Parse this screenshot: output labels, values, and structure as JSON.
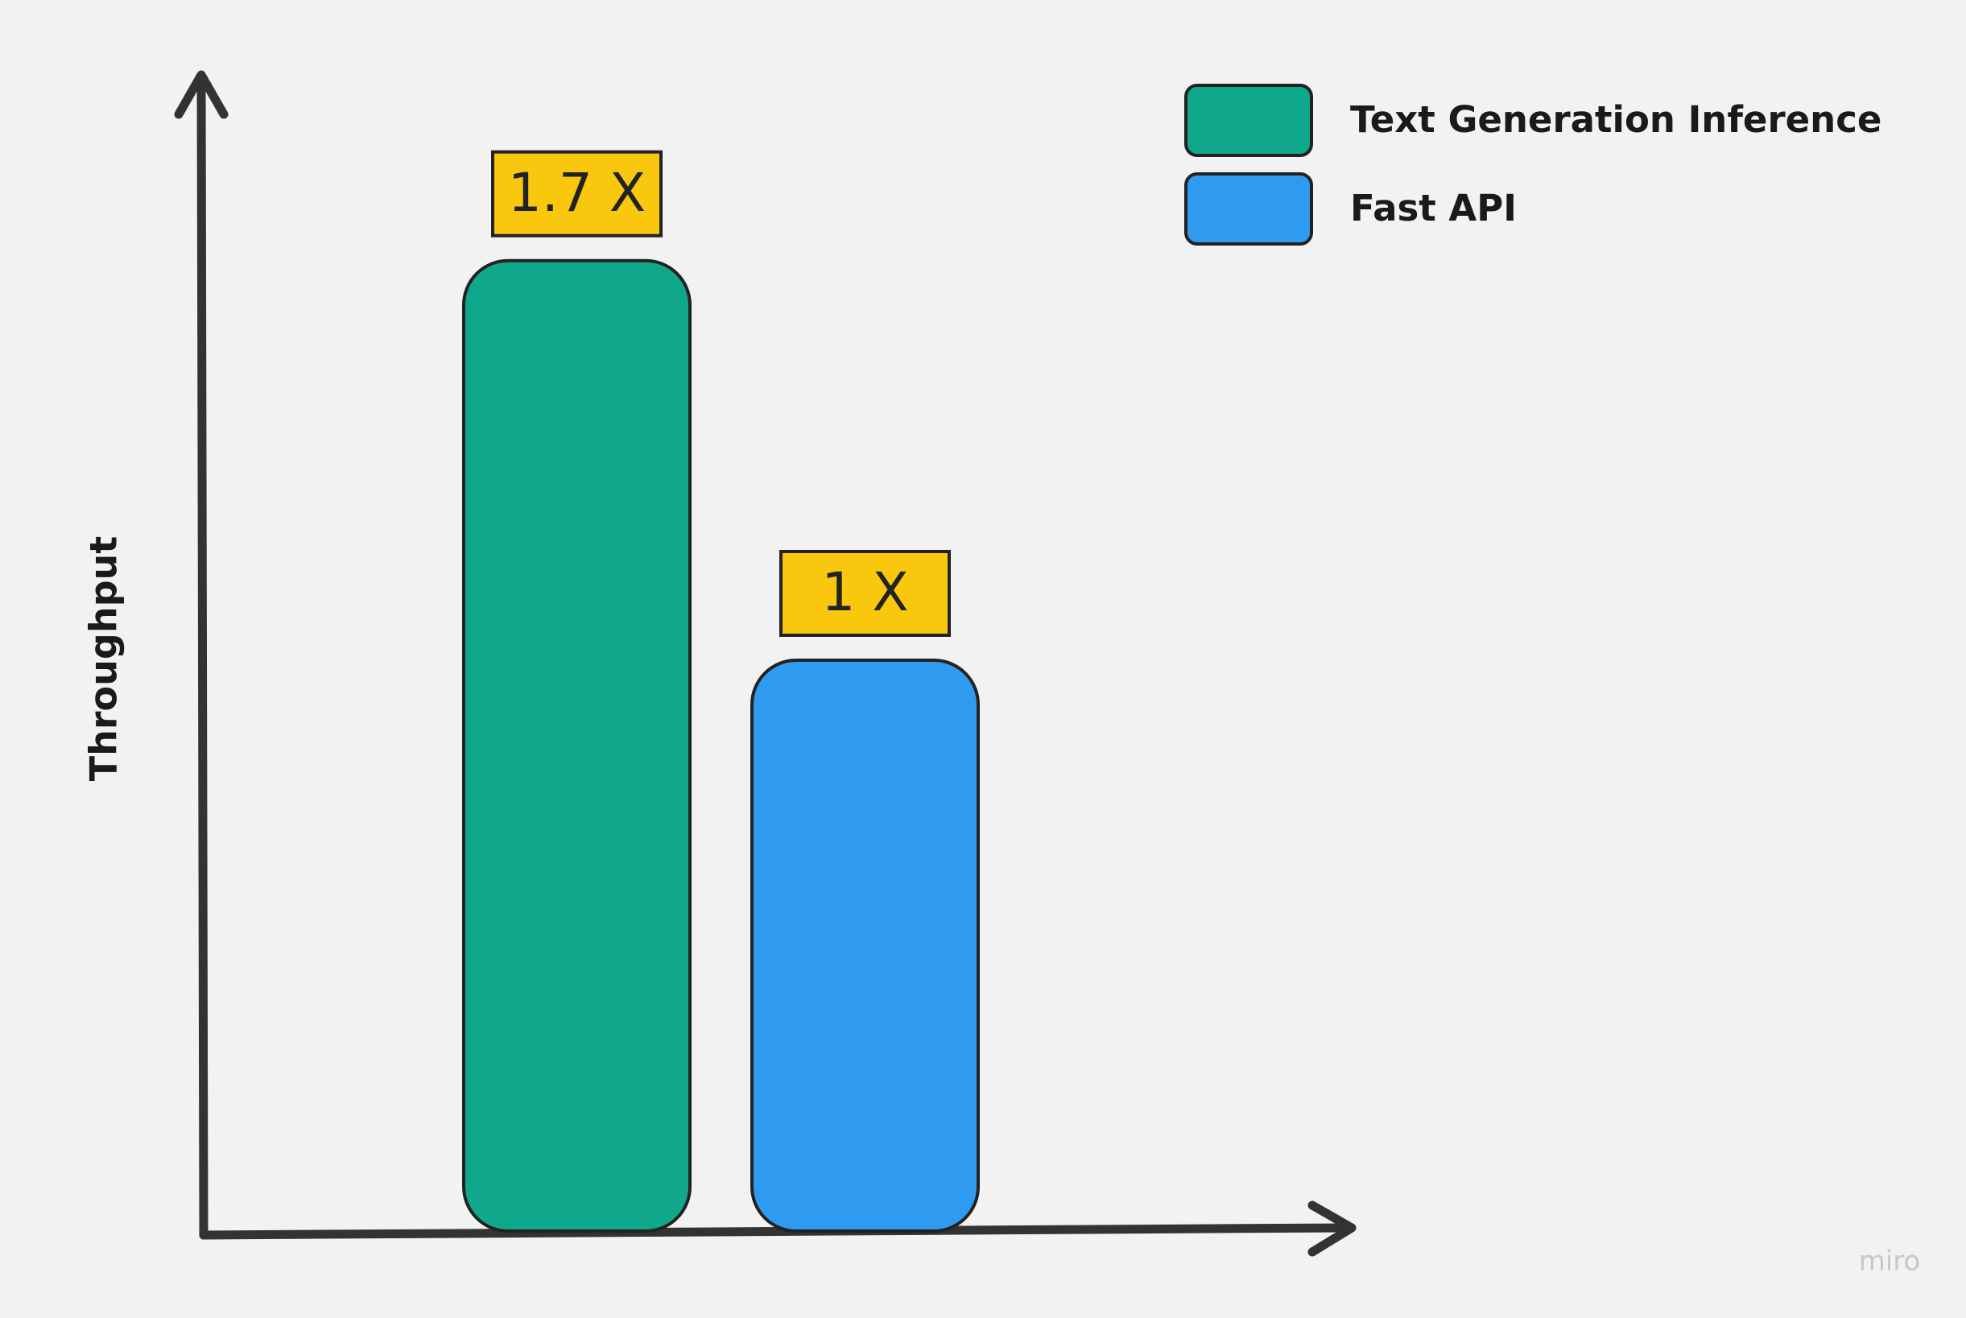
{
  "chart_data": {
    "type": "bar",
    "categories": [
      null
    ],
    "y_label": "Throughput",
    "ylim": [
      0,
      2
    ],
    "series": [
      {
        "name": "Text Generation Inference",
        "color": "#0fa88a",
        "values": [
          1.7
        ],
        "value_labels": [
          "1.7 X"
        ]
      },
      {
        "name": "Fast API",
        "color": "#2f9bf0",
        "values": [
          1
        ],
        "value_labels": [
          "1 X"
        ]
      }
    ],
    "label_color": "#f9c80e",
    "watermark": "miro"
  }
}
